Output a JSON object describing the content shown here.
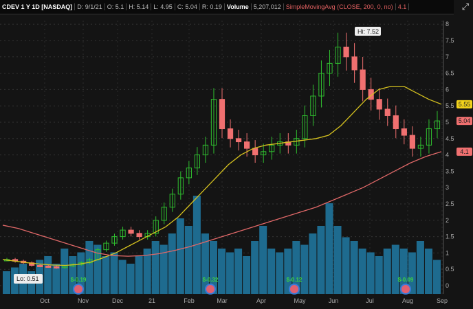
{
  "header": {
    "symbol": "CDEV 1 Y 1D [NASDAQ]",
    "date": "D: 9/1/21",
    "open": "O: 5.1",
    "high": "H: 5.14",
    "low": "L: 4.95",
    "close": "C: 5.04",
    "range": "R: 0.19",
    "volume_label": "Volume",
    "volume": "5,207,012",
    "study": "SimpleMovingAvg (CLOSE, 200, 0, no)",
    "study_value": "4.1"
  },
  "chart_data": {
    "type": "candlestick",
    "x_ticks": [
      "Oct",
      "Nov",
      "Dec",
      "21",
      "Feb",
      "Mar",
      "Apr",
      "May",
      "Jun",
      "Jul",
      "Aug",
      "Sep"
    ],
    "y_ticks": [
      0,
      0.5,
      1,
      1.5,
      2,
      2.5,
      3,
      3.5,
      4,
      4.5,
      5,
      5.5,
      6,
      6.5,
      7,
      7.5,
      8
    ],
    "ylim": [
      -0.3,
      8.3
    ],
    "weekly_close": [
      0.8,
      0.75,
      0.7,
      0.62,
      0.6,
      0.58,
      0.55,
      0.6,
      0.65,
      0.7,
      0.8,
      1.1,
      1.3,
      1.5,
      1.7,
      1.6,
      1.5,
      1.6,
      2.0,
      2.4,
      2.8,
      3.3,
      3.6,
      4.0,
      4.3,
      5.7,
      4.8,
      4.5,
      4.4,
      4.2,
      4.0,
      4.1,
      4.3,
      4.4,
      4.3,
      4.5,
      5.2,
      5.8,
      6.5,
      6.8,
      7.3,
      7.0,
      6.6,
      6.0,
      5.7,
      5.4,
      5.2,
      4.8,
      4.6,
      4.2,
      4.3,
      4.8,
      5.04
    ],
    "sma50": [
      0.8,
      0.75,
      0.7,
      0.66,
      0.63,
      0.62,
      0.65,
      0.72,
      0.85,
      1.0,
      1.2,
      1.4,
      1.6,
      1.8,
      2.1,
      2.5,
      2.9,
      3.3,
      3.7,
      4.0,
      4.2,
      4.3,
      4.35,
      4.4,
      4.45,
      4.5,
      4.6,
      4.9,
      5.3,
      5.7,
      6.0,
      6.1,
      6.1,
      5.9,
      5.7,
      5.55
    ],
    "sma200": [
      1.85,
      1.75,
      1.6,
      1.45,
      1.3,
      1.15,
      1.0,
      0.92,
      0.9,
      0.92,
      0.98,
      1.08,
      1.2,
      1.35,
      1.5,
      1.65,
      1.8,
      1.95,
      2.1,
      2.25,
      2.4,
      2.6,
      2.8,
      3.0,
      3.25,
      3.5,
      3.75,
      3.95,
      4.1
    ],
    "volume_relative": [
      0.3,
      0.35,
      0.4,
      0.3,
      0.45,
      0.5,
      0.4,
      0.6,
      0.5,
      0.55,
      0.7,
      0.65,
      0.5,
      0.55,
      0.45,
      0.4,
      0.5,
      0.6,
      0.7,
      0.65,
      0.8,
      1.0,
      0.9,
      1.3,
      0.8,
      0.7,
      0.6,
      0.55,
      0.6,
      0.5,
      0.7,
      0.9,
      0.6,
      0.55,
      0.6,
      0.7,
      0.65,
      0.8,
      0.9,
      1.2,
      0.9,
      0.75,
      0.7,
      0.6,
      0.55,
      0.5,
      0.6,
      0.65,
      0.6,
      0.55,
      0.7,
      0.6,
      0.45
    ],
    "high_label": "Hi: 7.52",
    "low_label": "Lo: 0.51",
    "price_tags": [
      {
        "value": "5.55",
        "color": "#f2d21b"
      },
      {
        "value": "5.04",
        "color": "#f07070"
      },
      {
        "value": "4.1",
        "color": "#f07070"
      }
    ],
    "earnings": [
      {
        "month": "Nov",
        "label": "$-0.19"
      },
      {
        "month": "Mar",
        "label": "$-0.32"
      },
      {
        "month": "May",
        "label": "$-0.12"
      },
      {
        "month": "Aug",
        "label": "$-0.09"
      }
    ],
    "colors": {
      "up": "#2fbf2f",
      "down": "#f07070",
      "sma50": "#d6c21f",
      "sma200": "#e06868",
      "volume": "#1e6b8f"
    }
  }
}
